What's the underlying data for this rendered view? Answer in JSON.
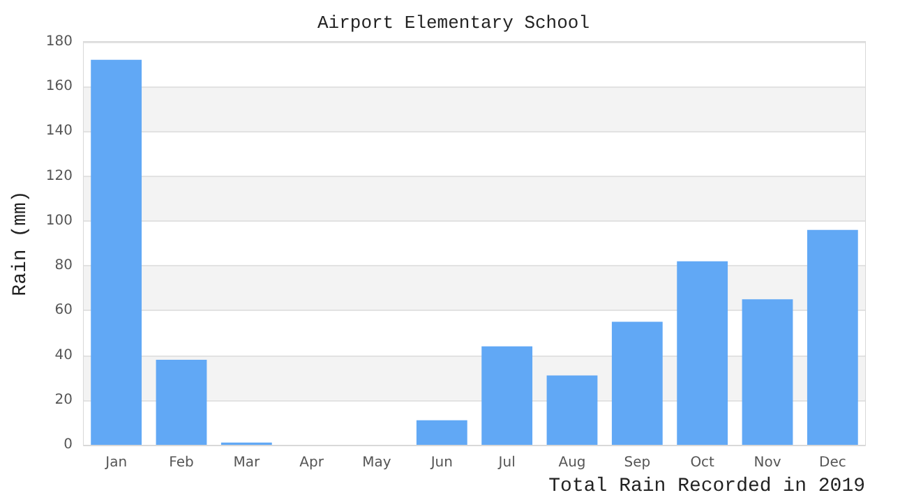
{
  "chart_data": {
    "type": "bar",
    "title": "Airport Elementary School",
    "xlabel": "Total Rain Recorded in 2019",
    "ylabel": "Rain (mm)",
    "categories": [
      "Jan",
      "Feb",
      "Mar",
      "Apr",
      "May",
      "Jun",
      "Jul",
      "Aug",
      "Sep",
      "Oct",
      "Nov",
      "Dec"
    ],
    "values": [
      172,
      38,
      1,
      0,
      0,
      11,
      44,
      31,
      55,
      82,
      65,
      96
    ],
    "color": "#61a8f5",
    "ylim": [
      0,
      180
    ],
    "yticks": [
      0,
      20,
      40,
      60,
      80,
      100,
      120,
      140,
      160,
      180
    ],
    "grid": "y"
  }
}
